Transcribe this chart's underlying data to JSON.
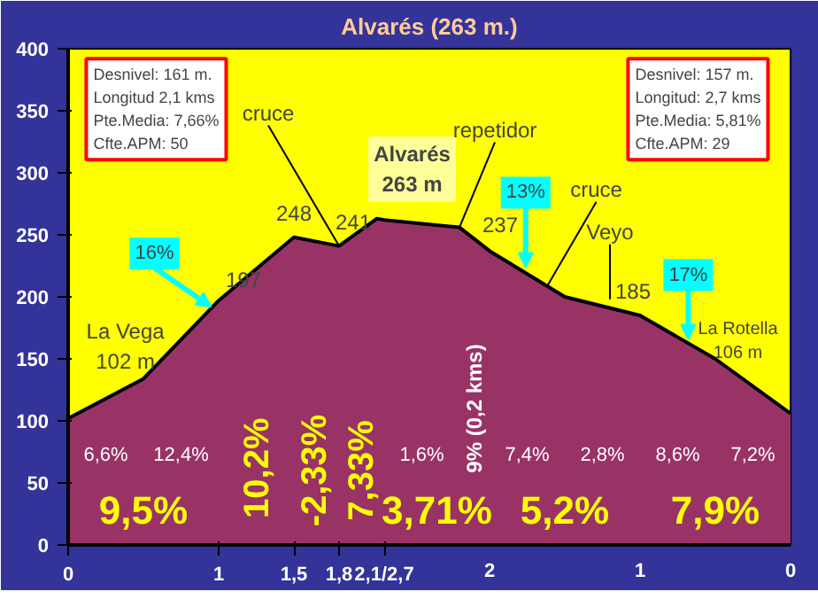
{
  "chart_data": {
    "type": "area",
    "title": "Alvarés (263 m.)",
    "series": [
      {
        "color": "#993366",
        "x": [
          0,
          0.5,
          1.0,
          1.5,
          1.8,
          2.05,
          2.1
        ],
        "values": [
          102,
          134,
          197,
          248,
          241,
          263,
          262
        ]
      },
      {
        "color": "#993366",
        "axis": "x2",
        "x": [
          2.7,
          2.2,
          2.0,
          1.5,
          1.0,
          0.5,
          0
        ],
        "values": [
          262,
          256,
          237,
          200,
          185,
          150,
          106
        ]
      }
    ],
    "xlim": [
      0,
      4.8
    ],
    "ylim": [
      0,
      400
    ],
    "x2lim": [
      4.8,
      0
    ],
    "xticks": [
      0,
      1,
      {
        "value": 1.5,
        "label": "1,5"
      },
      {
        "value": 1.8,
        "label": "1,8"
      },
      {
        "value": 2.1,
        "label": "2,1/2,7"
      }
    ],
    "x2ticks": [
      2,
      1,
      0
    ],
    "yticks": [
      0,
      50,
      100,
      150,
      200,
      250,
      300,
      350,
      400
    ],
    "grid": false,
    "annotations": [
      "Desnivel: 161 m.\nLongitud 2,1 kms\nPte.Media: 7,66%\nCfte.APM: 50",
      "Desnivel: 157 m.\nLongitud: 2,7 kms\nPte.Media: 5,81%\nCfte.APM:  29",
      "La Vega\n102 m",
      "La Rotella\n106 m",
      "6,6%",
      "12,4%",
      "1,6%",
      "7,4%",
      "2,8%",
      "8,6%",
      "7,2%",
      "9,5%",
      "10,2%",
      "-2,33%",
      "7,33%",
      "3,71%",
      "9% (0,2 kms)",
      "5,2%",
      "7,9%",
      {
        "text": "197",
        "x": 1.0,
        "y": 197
      },
      {
        "text": "248",
        "x": 1.5,
        "y": 248
      },
      {
        "text": "241",
        "x": 1.8,
        "y": 241
      },
      {
        "text": "cruce",
        "x": 1.8,
        "y": 241
      },
      {
        "text": "Alvarés\n263 m",
        "x": 2.05,
        "y": 263
      },
      {
        "text": "repetidor",
        "x": 2.6,
        "y": 256
      },
      {
        "text": "237",
        "x": 2.8,
        "y": 237
      },
      {
        "text": "cruce",
        "x": 3.18,
        "y": 208
      },
      {
        "text": "Veyo",
        "x": 3.6,
        "y": 198
      },
      {
        "text": "185",
        "x": 3.8,
        "y": 185
      },
      {
        "text": "16%",
        "x": 0.95,
        "y": 192
      },
      {
        "text": "13%",
        "x": 3.04,
        "y": 224
      },
      {
        "text": "17%",
        "x": 4.12,
        "y": 166
      }
    ]
  }
}
